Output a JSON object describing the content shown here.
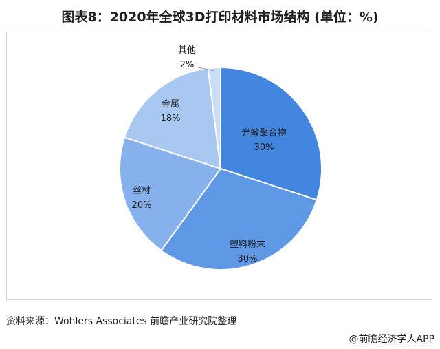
{
  "title": "图表8：2020年全球3D打印材料市场结构 (单位：%)",
  "chart_data": {
    "type": "pie",
    "slices": [
      {
        "label": "光敏聚合物",
        "value": 30,
        "display": "30%",
        "color": "#4286e0"
      },
      {
        "label": "塑料粉末",
        "value": 30,
        "display": "30%",
        "color": "#5f98e5"
      },
      {
        "label": "丝材",
        "value": 20,
        "display": "20%",
        "color": "#86b1ec"
      },
      {
        "label": "金属",
        "value": 18,
        "display": "18%",
        "color": "#a8c8f2"
      },
      {
        "label": "其他",
        "value": 2,
        "display": "2%",
        "color": "#c9ddf7"
      }
    ]
  },
  "source": "资料来源：Wohlers Associates 前瞻产业研究院整理",
  "credit": "@前瞻经济学人APP"
}
